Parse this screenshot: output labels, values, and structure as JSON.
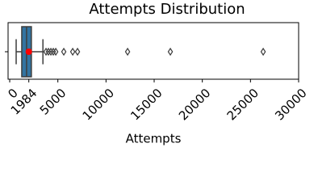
{
  "chart_data": {
    "type": "box",
    "title": "Attempts Distribution",
    "x_label": "Attempts",
    "xlim": [
      -170,
      30000
    ],
    "xticks": [
      0,
      5000,
      10000,
      15000,
      20000,
      25000,
      30000
    ],
    "box": {
      "whislo": 670,
      "q1": 1250,
      "med": 1750,
      "q3": 2250,
      "whishi": 3450,
      "fliers": [
        3770,
        4020,
        4275,
        4525,
        4780,
        5615,
        6540,
        7040,
        12240,
        16680,
        26320
      ]
    },
    "color": "#3274a1",
    "mean": 1984,
    "mean_color": "#ff0000"
  }
}
